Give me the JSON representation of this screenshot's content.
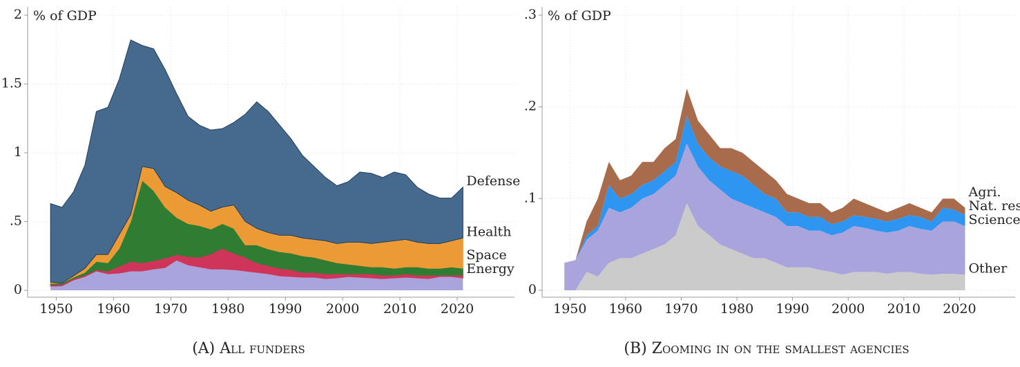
{
  "chart_data": [
    {
      "type": "stacked_area",
      "caption": "(A) All funders",
      "ylabel": "% of GDP",
      "x": [
        1949,
        1951,
        1953,
        1955,
        1957,
        1959,
        1961,
        1963,
        1965,
        1967,
        1969,
        1971,
        1973,
        1975,
        1977,
        1979,
        1981,
        1983,
        1985,
        1987,
        1989,
        1991,
        1993,
        1995,
        1997,
        1999,
        2001,
        2003,
        2005,
        2007,
        2009,
        2011,
        2013,
        2015,
        2017,
        2019,
        2021
      ],
      "xlim": [
        1945,
        2030
      ],
      "xticks": [
        1950,
        1960,
        1970,
        1980,
        1990,
        2000,
        2010,
        2020
      ],
      "ylim": [
        -0.05,
        2.06
      ],
      "yticks": [
        0,
        {
          "value": 0.5,
          "label": ".5"
        },
        1,
        1.5,
        2
      ],
      "grid": true,
      "series": [
        {
          "color": "#a9a5dc",
          "values": [
            0.03,
            0.033,
            0.075,
            0.1,
            0.14,
            0.12,
            0.125,
            0.14,
            0.14,
            0.155,
            0.165,
            0.22,
            0.185,
            0.17,
            0.155,
            0.155,
            0.15,
            0.14,
            0.13,
            0.12,
            0.105,
            0.1,
            0.095,
            0.095,
            0.085,
            0.09,
            0.1,
            0.095,
            0.09,
            0.085,
            0.09,
            0.095,
            0.09,
            0.085,
            0.1,
            0.1,
            0.09
          ]
        },
        {
          "name": "Energy",
          "color": "#cf3459",
          "values": [
            0.01,
            0.01,
            0.01,
            0.01,
            0.01,
            0.02,
            0.05,
            0.07,
            0.06,
            0.06,
            0.07,
            0.04,
            0.06,
            0.07,
            0.11,
            0.15,
            0.12,
            0.1,
            0.07,
            0.06,
            0.055,
            0.05,
            0.035,
            0.035,
            0.035,
            0.03,
            0.02,
            0.025,
            0.03,
            0.025,
            0.02,
            0.025,
            0.02,
            0.025,
            0.01,
            0.01,
            0.02
          ]
        },
        {
          "name": "Space",
          "color": "#2f7d32",
          "values": [
            0.01,
            0.01,
            0.01,
            0.02,
            0.06,
            0.06,
            0.13,
            0.29,
            0.6,
            0.51,
            0.37,
            0.27,
            0.24,
            0.23,
            0.18,
            0.18,
            0.18,
            0.09,
            0.13,
            0.12,
            0.12,
            0.12,
            0.12,
            0.11,
            0.1,
            0.08,
            0.07,
            0.06,
            0.05,
            0.06,
            0.05,
            0.05,
            0.06,
            0.05,
            0.05,
            0.06,
            0.05
          ]
        },
        {
          "name": "Health",
          "color": "#ec9a35",
          "values": [
            0.01,
            0,
            0.01,
            0.03,
            0.05,
            0.06,
            0.1,
            0.05,
            0.1,
            0.16,
            0.15,
            0.18,
            0.17,
            0.15,
            0.13,
            0.12,
            0.17,
            0.17,
            0.12,
            0.12,
            0.12,
            0.13,
            0.13,
            0.13,
            0.14,
            0.14,
            0.16,
            0.17,
            0.17,
            0.18,
            0.2,
            0.2,
            0.18,
            0.18,
            0.18,
            0.19,
            0.22
          ]
        },
        {
          "name": "Defense",
          "color": "#456a8d",
          "values": [
            0.57,
            0.55,
            0.61,
            0.75,
            1.04,
            1.07,
            1.13,
            1.27,
            0.88,
            0.87,
            0.85,
            0.72,
            0.61,
            0.58,
            0.59,
            0.57,
            0.6,
            0.78,
            0.92,
            0.88,
            0.8,
            0.7,
            0.6,
            0.53,
            0.46,
            0.42,
            0.44,
            0.51,
            0.51,
            0.47,
            0.5,
            0.47,
            0.4,
            0.36,
            0.33,
            0.31,
            0.37
          ]
        }
      ]
    },
    {
      "type": "stacked_area",
      "caption": "(B) Zooming in on the smallest agencies",
      "ylabel": "% of GDP",
      "x": [
        1949,
        1951,
        1953,
        1955,
        1957,
        1959,
        1961,
        1963,
        1965,
        1967,
        1969,
        1971,
        1973,
        1975,
        1977,
        1979,
        1981,
        1983,
        1985,
        1987,
        1989,
        1991,
        1993,
        1995,
        1997,
        1999,
        2001,
        2003,
        2005,
        2007,
        2009,
        2011,
        2013,
        2015,
        2017,
        2019,
        2021
      ],
      "xlim": [
        1945,
        2030
      ],
      "xticks": [
        1950,
        1960,
        1970,
        1980,
        1990,
        2000,
        2010,
        2020
      ],
      "ylim": [
        -0.0075,
        0.309
      ],
      "yticks": [
        0,
        {
          "value": 0.1,
          "label": ".1"
        },
        {
          "value": 0.2,
          "label": ".2"
        },
        {
          "value": 0.3,
          "label": ".3"
        }
      ],
      "grid": true,
      "series": [
        {
          "name": "Other",
          "color": "#cbcbcb",
          "values": [
            0,
            0,
            0.02,
            0.015,
            0.03,
            0.035,
            0.035,
            0.04,
            0.045,
            0.05,
            0.06,
            0.095,
            0.07,
            0.06,
            0.05,
            0.045,
            0.04,
            0.035,
            0.035,
            0.03,
            0.025,
            0.025,
            0.025,
            0.022,
            0.02,
            0.017,
            0.02,
            0.02,
            0.02,
            0.018,
            0.02,
            0.02,
            0.018,
            0.017,
            0.018,
            0.018,
            0.017
          ]
        },
        {
          "name": "Science",
          "color": "#a9a5dc",
          "values": [
            0.03,
            0.033,
            0.035,
            0.05,
            0.06,
            0.05,
            0.055,
            0.06,
            0.06,
            0.065,
            0.065,
            0.065,
            0.065,
            0.06,
            0.06,
            0.055,
            0.055,
            0.055,
            0.05,
            0.05,
            0.045,
            0.045,
            0.04,
            0.043,
            0.04,
            0.046,
            0.05,
            0.048,
            0.045,
            0.045,
            0.045,
            0.05,
            0.049,
            0.048,
            0.057,
            0.057,
            0.053
          ]
        },
        {
          "name": "Nat. res.",
          "color": "#2e95f0",
          "values": [
            0,
            0,
            0.005,
            0.005,
            0.025,
            0.015,
            0.015,
            0.015,
            0.015,
            0.015,
            0.015,
            0.03,
            0.025,
            0.025,
            0.025,
            0.03,
            0.03,
            0.025,
            0.02,
            0.02,
            0.015,
            0.015,
            0.015,
            0.015,
            0.012,
            0.012,
            0.012,
            0.012,
            0.013,
            0.012,
            0.013,
            0.012,
            0.013,
            0.01,
            0.015,
            0.013,
            0.012
          ]
        },
        {
          "name": "Agri.",
          "color": "#a86b4b",
          "values": [
            0,
            0,
            0.015,
            0.03,
            0.025,
            0.02,
            0.02,
            0.025,
            0.02,
            0.025,
            0.025,
            0.03,
            0.025,
            0.025,
            0.02,
            0.025,
            0.025,
            0.025,
            0.025,
            0.02,
            0.02,
            0.015,
            0.015,
            0.015,
            0.013,
            0.015,
            0.018,
            0.015,
            0.012,
            0.01,
            0.012,
            0.013,
            0.01,
            0.01,
            0.01,
            0.012,
            0.008
          ]
        }
      ]
    }
  ]
}
